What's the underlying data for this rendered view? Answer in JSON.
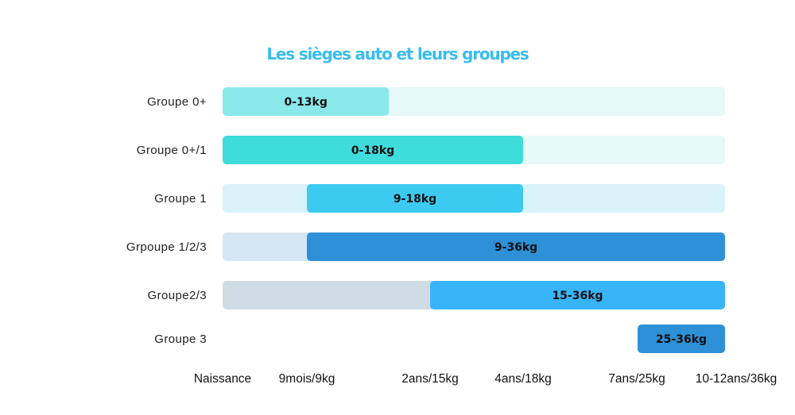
{
  "chart_data": {
    "type": "bar",
    "orientation": "horizontal",
    "title": "Les sièges auto et leurs groupes",
    "x_ticks": [
      "Naissance",
      "9mois/9kg",
      "2ans/15kg",
      "4ans/18kg",
      "7ans/25kg",
      "10-12ans/36kg"
    ],
    "xlim_kg": [
      0,
      36
    ],
    "rows": [
      {
        "label": "Groupe 0+",
        "start_kg": 0,
        "end_kg": 13,
        "bar_label": "0-13kg",
        "track": true
      },
      {
        "label": "Groupe 0+/1",
        "start_kg": 0,
        "end_kg": 18,
        "bar_label": "0-18kg",
        "track": true
      },
      {
        "label": "Groupe 1",
        "start_kg": 9,
        "end_kg": 18,
        "bar_label": "9-18kg",
        "track": true
      },
      {
        "label": "Grpoupe 1/2/3",
        "start_kg": 9,
        "end_kg": 36,
        "bar_label": "9-36kg",
        "track": true
      },
      {
        "label": "Groupe2/3",
        "start_kg": 15,
        "end_kg": 36,
        "bar_label": "15-36kg",
        "track": true
      },
      {
        "label": "Groupe 3",
        "start_kg": 25,
        "end_kg": 36,
        "bar_label": "25-36kg",
        "track": false
      }
    ],
    "colors": {
      "title": "#38BDF0",
      "bars": [
        "#8AE8EA",
        "#3EDCDA",
        "#3CCAF0",
        "#2E90D6",
        "#38B4FA",
        "#2E90D6"
      ],
      "tracks": [
        "#E6F8F8",
        "#E6F8F8",
        "#D8F3FA",
        "#D5E7F5",
        "#CFDCE6",
        null
      ]
    }
  }
}
